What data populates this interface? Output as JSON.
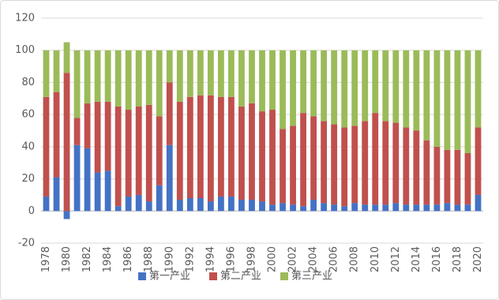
{
  "chart_data": {
    "type": "stacked_bar",
    "categories": [
      "1978",
      null,
      "1980",
      null,
      "1982",
      null,
      "1984",
      null,
      "1986",
      null,
      "1988",
      null,
      "1990",
      null,
      "1992",
      null,
      "1994",
      null,
      "1996",
      null,
      "1998",
      null,
      "2000",
      null,
      "2002",
      null,
      "2004",
      null,
      "2006",
      null,
      "2008",
      null,
      "2010",
      null,
      "2012",
      null,
      "2014",
      null,
      "2016",
      null,
      "2018",
      null,
      "2020"
    ],
    "series": [
      {
        "name": "第一产业",
        "color": "#4472c4",
        "values": [
          9,
          21,
          -5,
          41,
          39,
          24,
          25,
          3,
          9,
          10,
          6,
          16,
          41,
          7,
          8,
          8,
          6,
          9,
          9,
          7,
          7,
          6,
          4,
          5,
          4,
          3,
          7,
          5,
          4,
          3,
          5,
          4,
          4,
          4,
          5,
          4,
          4,
          4,
          4,
          5,
          4,
          4,
          10
        ]
      },
      {
        "name": "第二产业",
        "color": "#c0504d",
        "values": [
          62,
          53,
          86,
          17,
          28,
          44,
          43,
          62,
          54,
          55,
          60,
          43,
          39,
          61,
          63,
          64,
          66,
          62,
          62,
          58,
          60,
          56,
          59,
          46,
          49,
          58,
          52,
          51,
          50,
          49,
          48,
          52,
          57,
          52,
          50,
          48,
          46,
          40,
          36,
          33,
          34,
          32,
          42
        ]
      },
      {
        "name": "第三产业",
        "color": "#9bbb59",
        "values": [
          29,
          26,
          19,
          42,
          33,
          32,
          32,
          35,
          37,
          35,
          34,
          41,
          20,
          32,
          29,
          28,
          28,
          29,
          29,
          35,
          33,
          38,
          37,
          49,
          47,
          39,
          41,
          44,
          46,
          48,
          47,
          44,
          39,
          44,
          45,
          48,
          50,
          56,
          60,
          62,
          62,
          64,
          48
        ]
      }
    ],
    "ylim": [
      -20,
      120
    ],
    "yticks": [
      -20,
      0,
      20,
      40,
      60,
      80,
      100,
      120
    ],
    "grid": true,
    "legend": "bottom"
  }
}
